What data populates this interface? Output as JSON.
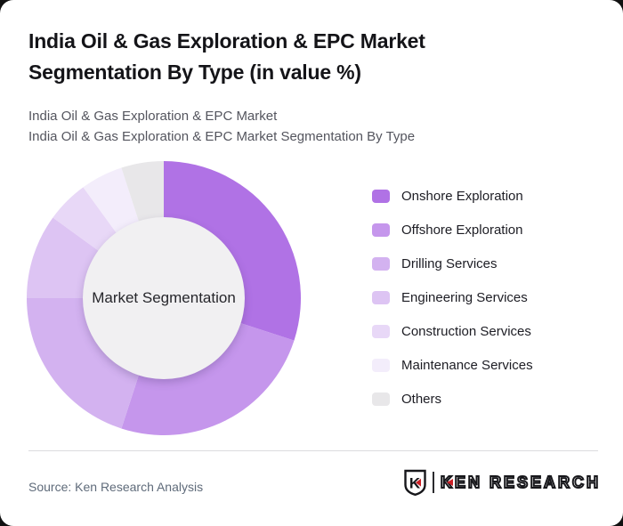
{
  "page": {
    "background_color": "#111111",
    "card_color": "#ffffff"
  },
  "header": {
    "title": "India Oil & Gas Exploration & EPC Market Segmentation By Type (in value %)",
    "subtitle_line1": "India Oil & Gas Exploration & EPC Market",
    "subtitle_line2": "India Oil & Gas Exploration & EPC Market Segmentation By Type"
  },
  "chart_data": {
    "type": "pie",
    "variant": "donut",
    "title": "India Oil & Gas Exploration & EPC Market Segmentation By Type (in value %)",
    "center_label": "Market Segmentation",
    "units": "value %",
    "start_angle_deg": 0,
    "direction": "clockwise",
    "legend_position": "right",
    "inner_circle_color": "#f1f0f2",
    "segments": [
      {
        "label": "Onshore Exploration",
        "value": 30,
        "color": "#b072e5"
      },
      {
        "label": "Offshore Exploration",
        "value": 25,
        "color": "#c596ec"
      },
      {
        "label": "Drilling Services",
        "value": 20,
        "color": "#d3b2f0"
      },
      {
        "label": "Engineering Services",
        "value": 10,
        "color": "#ddc4f3"
      },
      {
        "label": "Construction Services",
        "value": 5,
        "color": "#e8d8f7"
      },
      {
        "label": "Maintenance Services",
        "value": 5,
        "color": "#f3edfb"
      },
      {
        "label": "Others",
        "value": 5,
        "color": "#e8e7e9"
      }
    ]
  },
  "footer": {
    "source_text": "Source: Ken Research Analysis",
    "logo": {
      "emblem_letter": "K",
      "brand_text": "KEN RESEARCH",
      "accent_color": "#cb2026",
      "text_color": "#17171b"
    }
  }
}
